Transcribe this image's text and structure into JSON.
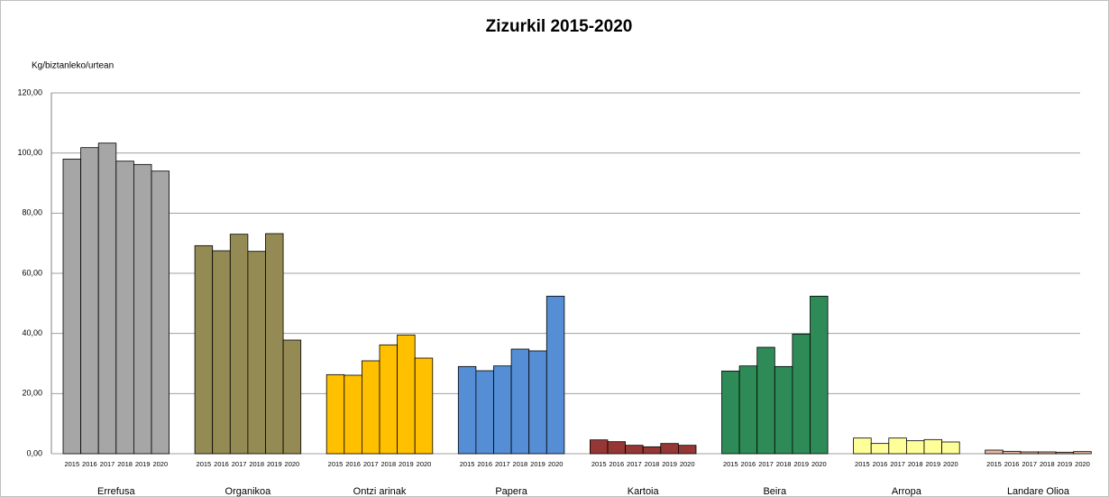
{
  "chart_data": {
    "type": "bar",
    "title": "Zizurkil 2015-2020",
    "y_label": "Kg/biztanleko/urtean",
    "years": [
      "2015",
      "2016",
      "2017",
      "2018",
      "2019",
      "2020"
    ],
    "groups": [
      {
        "name": "Errefusa",
        "color": "#a6a6a6",
        "values": [
          98,
          101.8,
          103.3,
          97.3,
          96.2,
          94
        ]
      },
      {
        "name": "Organikoa",
        "color": "#948a54",
        "values": [
          69.2,
          67.5,
          73,
          67.3,
          73.2,
          37.8
        ]
      },
      {
        "name": "Ontzi arinak",
        "color": "#ffc000",
        "values": [
          26.3,
          26.1,
          30.9,
          36.2,
          39.5,
          31.8
        ]
      },
      {
        "name": "Papera",
        "color": "#558ed5",
        "values": [
          29,
          27.6,
          29.2,
          34.8,
          34.2,
          52.4
        ]
      },
      {
        "name": "Kartoia",
        "color": "#953735",
        "values": [
          4.6,
          4,
          2.8,
          2.3,
          3.4,
          2.8
        ]
      },
      {
        "name": "Beira",
        "color": "#2e8b57",
        "values": [
          27.5,
          29.2,
          35.4,
          29,
          39.8,
          52.4
        ]
      },
      {
        "name": "Arropa",
        "color": "#ffff99",
        "values": [
          5.2,
          3.4,
          5.2,
          4.3,
          4.7,
          3.9
        ]
      },
      {
        "name": "Landare Olioa",
        "color": "#e6b9a0",
        "values": [
          1.2,
          0.8,
          0.6,
          0.6,
          0.5,
          0.7
        ]
      }
    ],
    "ylim": [
      0,
      120
    ],
    "yticks": [
      {
        "value": 0,
        "label": "0,00"
      },
      {
        "value": 20,
        "label": "20,00"
      },
      {
        "value": 40,
        "label": "40,00"
      },
      {
        "value": 60,
        "label": "60,00"
      },
      {
        "value": 80,
        "label": "80,00"
      },
      {
        "value": 100,
        "label": "100,00"
      },
      {
        "value": 120,
        "label": "120,00"
      }
    ],
    "grid": true
  }
}
